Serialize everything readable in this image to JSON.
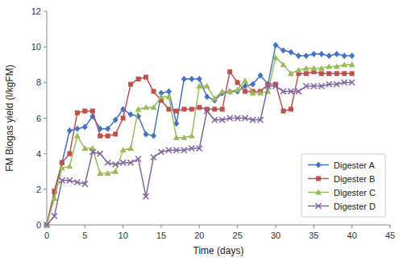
{
  "chart_data": {
    "type": "line",
    "xlabel": "Time (days)",
    "ylabel": "FM Biogas yield (l/kgFM)",
    "x": [
      0,
      1,
      2,
      3,
      4,
      5,
      6,
      7,
      8,
      9,
      10,
      11,
      12,
      13,
      14,
      15,
      16,
      17,
      18,
      19,
      20,
      21,
      22,
      23,
      24,
      25,
      26,
      27,
      28,
      29,
      30,
      31,
      32,
      33,
      34,
      35,
      36,
      37,
      38,
      39,
      40
    ],
    "series": [
      {
        "name": "Digester A",
        "color": "#4472C4",
        "marker": "diamond",
        "values": [
          0,
          1.8,
          3.5,
          5.3,
          5.4,
          5.5,
          6.1,
          5.4,
          5.4,
          5.9,
          6.5,
          6.2,
          6.1,
          5.1,
          5.0,
          7.4,
          7.5,
          5.7,
          8.2,
          8.2,
          8.2,
          7.2,
          7.0,
          7.4,
          7.5,
          7.5,
          7.8,
          7.9,
          8.4,
          7.9,
          10.1,
          9.8,
          9.7,
          9.5,
          9.5,
          9.6,
          9.6,
          9.5,
          9.6,
          9.5,
          9.5
        ]
      },
      {
        "name": "Digester B",
        "color": "#C0504D",
        "marker": "square",
        "values": [
          0,
          1.9,
          3.5,
          4.0,
          6.3,
          6.4,
          6.4,
          5.0,
          5.0,
          5.1,
          6.0,
          7.9,
          8.2,
          8.3,
          7.5,
          7.0,
          6.5,
          6.4,
          6.5,
          6.5,
          6.6,
          6.5,
          6.5,
          6.5,
          8.6,
          8.0,
          7.5,
          7.5,
          7.5,
          7.9,
          7.9,
          6.4,
          6.5,
          8.5,
          8.5,
          8.6,
          8.5,
          8.5,
          8.5,
          8.5,
          8.5
        ]
      },
      {
        "name": "Digester C",
        "color": "#9BBB59",
        "marker": "triangle",
        "values": [
          0,
          1.5,
          3.2,
          3.3,
          5.0,
          4.3,
          4.3,
          2.9,
          2.9,
          3.0,
          4.2,
          4.3,
          6.5,
          6.6,
          6.6,
          7.2,
          7.2,
          4.9,
          4.9,
          5.0,
          7.8,
          7.8,
          7.1,
          7.5,
          7.5,
          7.6,
          8.1,
          7.4,
          7.4,
          7.5,
          9.4,
          9.0,
          8.5,
          8.7,
          8.8,
          8.8,
          8.8,
          8.9,
          8.9,
          9.0,
          9.0
        ]
      },
      {
        "name": "Digester D",
        "color": "#8064A2",
        "marker": "x",
        "values": [
          0,
          0.5,
          2.5,
          2.5,
          2.4,
          2.3,
          4.1,
          4.0,
          3.5,
          3.4,
          3.5,
          3.5,
          3.7,
          1.6,
          3.8,
          4.1,
          4.2,
          4.2,
          4.2,
          4.3,
          4.3,
          6.4,
          5.9,
          5.9,
          6.0,
          6.0,
          6.0,
          5.9,
          5.9,
          7.8,
          7.8,
          7.5,
          7.5,
          7.5,
          7.8,
          7.8,
          7.8,
          7.9,
          7.9,
          8.0,
          8.0
        ]
      }
    ],
    "xlim": [
      0,
      45
    ],
    "ylim": [
      0,
      12
    ],
    "xticks": [
      0,
      5,
      10,
      15,
      20,
      25,
      30,
      35,
      40,
      45
    ],
    "yticks": [
      0,
      2,
      4,
      6,
      8,
      10,
      12
    ],
    "grid": false,
    "legend": "lower right"
  }
}
